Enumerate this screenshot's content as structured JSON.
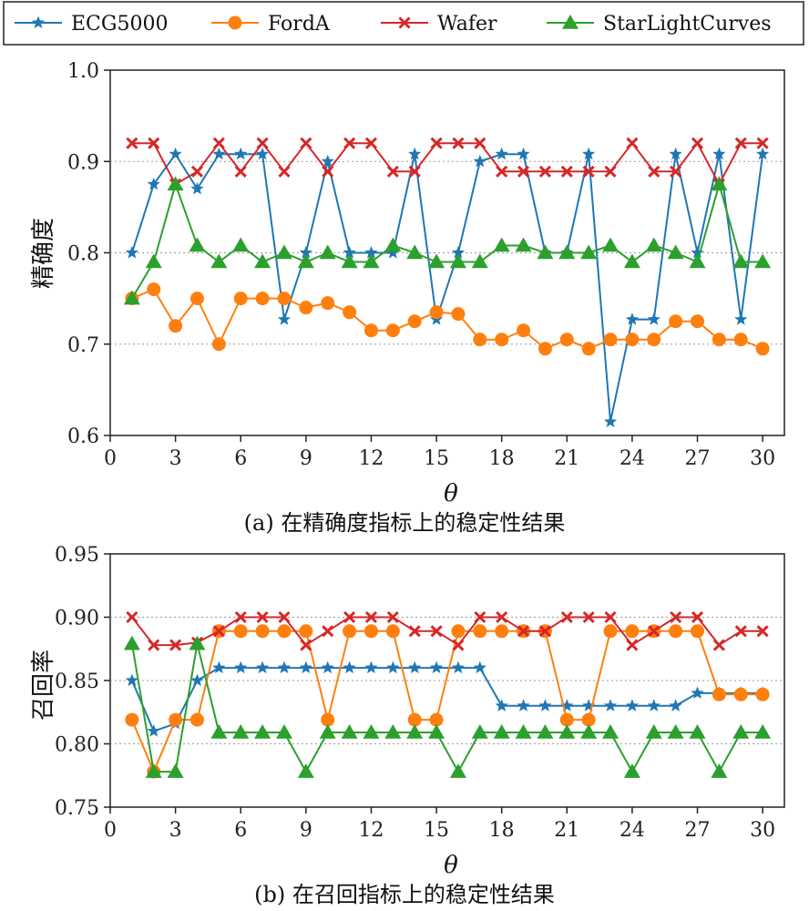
{
  "legend": {
    "entries": [
      {
        "name": "ECG5000",
        "color": "#1f77b4",
        "marker": "star"
      },
      {
        "name": "FordA",
        "color": "#ff7f0e",
        "marker": "circle"
      },
      {
        "name": "Wafer",
        "color": "#d62728",
        "marker": "x"
      },
      {
        "name": "StarLightCurves",
        "color": "#2ca02c",
        "marker": "triangle"
      }
    ]
  },
  "chart_data": [
    {
      "type": "line",
      "caption": "(a) 在精确度指标上的稳定性结果",
      "xlabel": "θ",
      "ylabel": "精确度",
      "xlim": [
        0,
        31
      ],
      "ylim": [
        0.6,
        1.0
      ],
      "xticks": [
        0,
        3,
        6,
        9,
        12,
        15,
        18,
        21,
        24,
        27,
        30
      ],
      "yticks": [
        0.6,
        0.7,
        0.8,
        0.9,
        1.0
      ],
      "ytick_labels": [
        "0.6",
        "0.7",
        "0.8",
        "0.9",
        "1.0"
      ],
      "grid": "horizontal dotted",
      "x": [
        1,
        2,
        3,
        4,
        5,
        6,
        7,
        8,
        9,
        10,
        11,
        12,
        13,
        14,
        15,
        16,
        17,
        18,
        19,
        20,
        21,
        22,
        23,
        24,
        25,
        26,
        27,
        28,
        29,
        30
      ],
      "series": [
        {
          "name": "ECG5000",
          "values": [
            0.8,
            0.875,
            0.908,
            0.87,
            0.908,
            0.908,
            0.908,
            0.727,
            0.8,
            0.9,
            0.8,
            0.8,
            0.8,
            0.908,
            0.727,
            0.8,
            0.9,
            0.908,
            0.908,
            0.8,
            0.8,
            0.908,
            0.615,
            0.727,
            0.727,
            0.908,
            0.8,
            0.908,
            0.727,
            0.908
          ]
        },
        {
          "name": "FordA",
          "values": [
            0.75,
            0.76,
            0.72,
            0.75,
            0.7,
            0.75,
            0.75,
            0.75,
            0.74,
            0.745,
            0.735,
            0.715,
            0.715,
            0.725,
            0.735,
            0.733,
            0.705,
            0.705,
            0.715,
            0.695,
            0.705,
            0.695,
            0.705,
            0.705,
            0.705,
            0.725,
            0.725,
            0.705,
            0.705,
            0.695
          ]
        },
        {
          "name": "Wafer",
          "values": [
            0.92,
            0.92,
            0.875,
            0.889,
            0.92,
            0.889,
            0.92,
            0.889,
            0.92,
            0.889,
            0.92,
            0.92,
            0.889,
            0.889,
            0.92,
            0.92,
            0.92,
            0.889,
            0.889,
            0.889,
            0.889,
            0.889,
            0.889,
            0.92,
            0.889,
            0.889,
            0.92,
            0.875,
            0.92,
            0.92
          ]
        },
        {
          "name": "StarLightCurves",
          "values": [
            0.75,
            0.79,
            0.875,
            0.808,
            0.79,
            0.808,
            0.79,
            0.8,
            0.79,
            0.8,
            0.79,
            0.79,
            0.808,
            0.8,
            0.79,
            0.79,
            0.79,
            0.808,
            0.808,
            0.8,
            0.8,
            0.8,
            0.808,
            0.79,
            0.808,
            0.8,
            0.79,
            0.875,
            0.79,
            0.79
          ]
        }
      ]
    },
    {
      "type": "line",
      "caption": "(b) 在召回指标上的稳定性结果",
      "xlabel": "θ",
      "ylabel": "召回率",
      "xlim": [
        0,
        31
      ],
      "ylim": [
        0.75,
        0.95
      ],
      "xticks": [
        0,
        3,
        6,
        9,
        12,
        15,
        18,
        21,
        24,
        27,
        30
      ],
      "yticks": [
        0.75,
        0.8,
        0.85,
        0.9,
        0.95
      ],
      "ytick_labels": [
        "0.75",
        "0.80",
        "0.85",
        "0.90",
        "0.95"
      ],
      "grid": "horizontal dotted",
      "x": [
        1,
        2,
        3,
        4,
        5,
        6,
        7,
        8,
        9,
        10,
        11,
        12,
        13,
        14,
        15,
        16,
        17,
        18,
        19,
        20,
        21,
        22,
        23,
        24,
        25,
        26,
        27,
        28,
        29,
        30
      ],
      "series": [
        {
          "name": "ECG5000",
          "values": [
            0.85,
            0.81,
            0.816,
            0.85,
            0.86,
            0.86,
            0.86,
            0.86,
            0.86,
            0.86,
            0.86,
            0.86,
            0.86,
            0.86,
            0.86,
            0.86,
            0.86,
            0.83,
            0.83,
            0.83,
            0.83,
            0.83,
            0.83,
            0.83,
            0.83,
            0.83,
            0.84,
            0.84,
            0.84,
            0.84
          ]
        },
        {
          "name": "FordA",
          "values": [
            0.819,
            0.778,
            0.819,
            0.819,
            0.889,
            0.889,
            0.889,
            0.889,
            0.889,
            0.819,
            0.889,
            0.889,
            0.889,
            0.819,
            0.819,
            0.889,
            0.889,
            0.889,
            0.889,
            0.889,
            0.819,
            0.819,
            0.889,
            0.889,
            0.889,
            0.889,
            0.889,
            0.839,
            0.839,
            0.839
          ]
        },
        {
          "name": "Wafer",
          "values": [
            0.9,
            0.878,
            0.878,
            0.88,
            0.889,
            0.9,
            0.9,
            0.9,
            0.878,
            0.889,
            0.9,
            0.9,
            0.9,
            0.889,
            0.889,
            0.878,
            0.9,
            0.9,
            0.889,
            0.889,
            0.9,
            0.9,
            0.9,
            0.878,
            0.889,
            0.9,
            0.9,
            0.878,
            0.889,
            0.889
          ]
        },
        {
          "name": "StarLightCurves",
          "values": [
            0.879,
            0.778,
            0.778,
            0.879,
            0.809,
            0.809,
            0.809,
            0.809,
            0.778,
            0.809,
            0.809,
            0.809,
            0.809,
            0.809,
            0.809,
            0.778,
            0.809,
            0.809,
            0.809,
            0.809,
            0.809,
            0.809,
            0.809,
            0.778,
            0.809,
            0.809,
            0.809,
            0.778,
            0.809,
            0.809
          ]
        }
      ]
    }
  ]
}
